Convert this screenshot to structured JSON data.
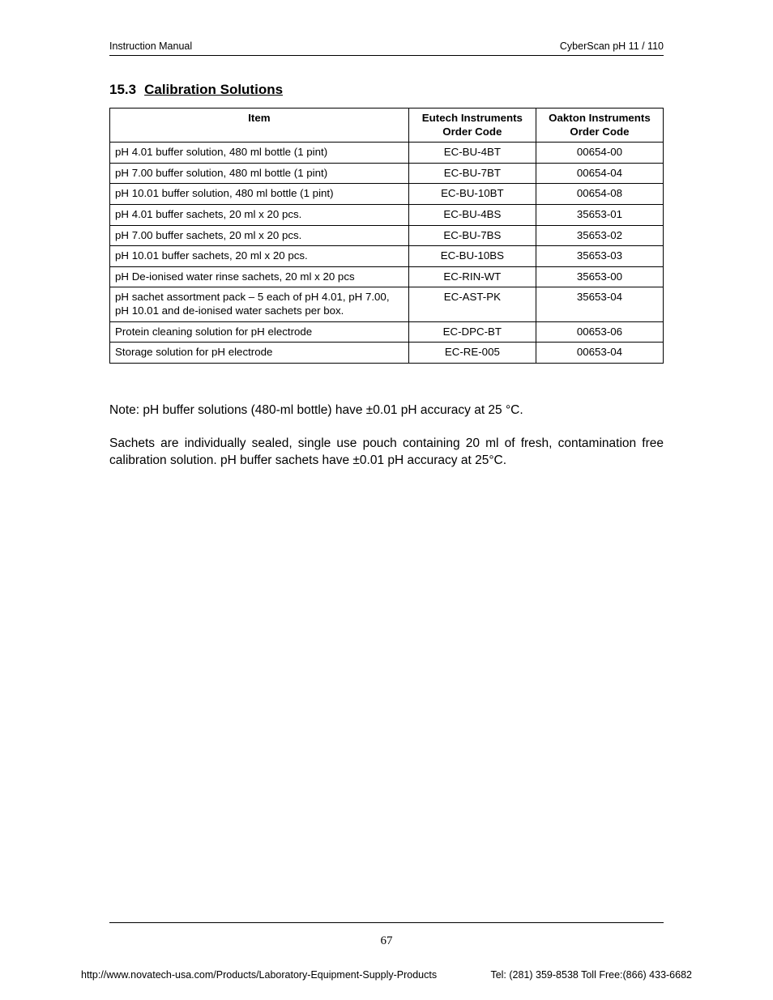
{
  "header": {
    "left": "Instruction Manual",
    "right": "CyberScan pH 11 / 110"
  },
  "section": {
    "number": "15.3",
    "title": "Calibration Solutions"
  },
  "table": {
    "columns": [
      "Item",
      "Eutech Instruments Order Code",
      "Oakton Instruments Order Code"
    ],
    "rows": [
      [
        "pH 4.01 buffer solution, 480 ml bottle (1 pint)",
        "EC-BU-4BT",
        "00654-00"
      ],
      [
        "pH 7.00 buffer solution, 480 ml bottle (1 pint)",
        "EC-BU-7BT",
        "00654-04"
      ],
      [
        "pH 10.01 buffer solution, 480 ml bottle (1 pint)",
        "EC-BU-10BT",
        "00654-08"
      ],
      [
        "pH 4.01 buffer sachets, 20 ml x 20 pcs.",
        "EC-BU-4BS",
        "35653-01"
      ],
      [
        "pH 7.00 buffer sachets, 20 ml x 20 pcs.",
        "EC-BU-7BS",
        "35653-02"
      ],
      [
        "pH 10.01 buffer sachets, 20 ml x 20 pcs.",
        "EC-BU-10BS",
        "35653-03"
      ],
      [
        "pH De-ionised water rinse sachets, 20 ml x 20 pcs",
        "EC-RIN-WT",
        "35653-00"
      ],
      [
        "pH sachet assortment pack – 5 each of pH 4.01, pH 7.00, pH 10.01 and de-ionised water sachets per box.",
        "EC-AST-PK",
        "35653-04"
      ],
      [
        "Protein cleaning solution for pH electrode",
        "EC-DPC-BT",
        "00653-06"
      ],
      [
        "Storage solution for pH electrode",
        "EC-RE-005",
        "00653-04"
      ]
    ]
  },
  "note": "Note: pH buffer solutions (480-ml bottle) have ±0.01 pH accuracy at 25 °C.",
  "paragraph": "Sachets are individually sealed, single use pouch containing 20 ml of fresh, contamination free calibration solution. pH buffer sachets have ±0.01 pH accuracy at 25°C.",
  "page_number": "67",
  "footer": {
    "left": "http://www.novatech-usa.com/Products/Laboratory-Equipment-Supply-Products",
    "right": "Tel: (281) 359-8538  Toll Free:(866) 433-6682"
  }
}
